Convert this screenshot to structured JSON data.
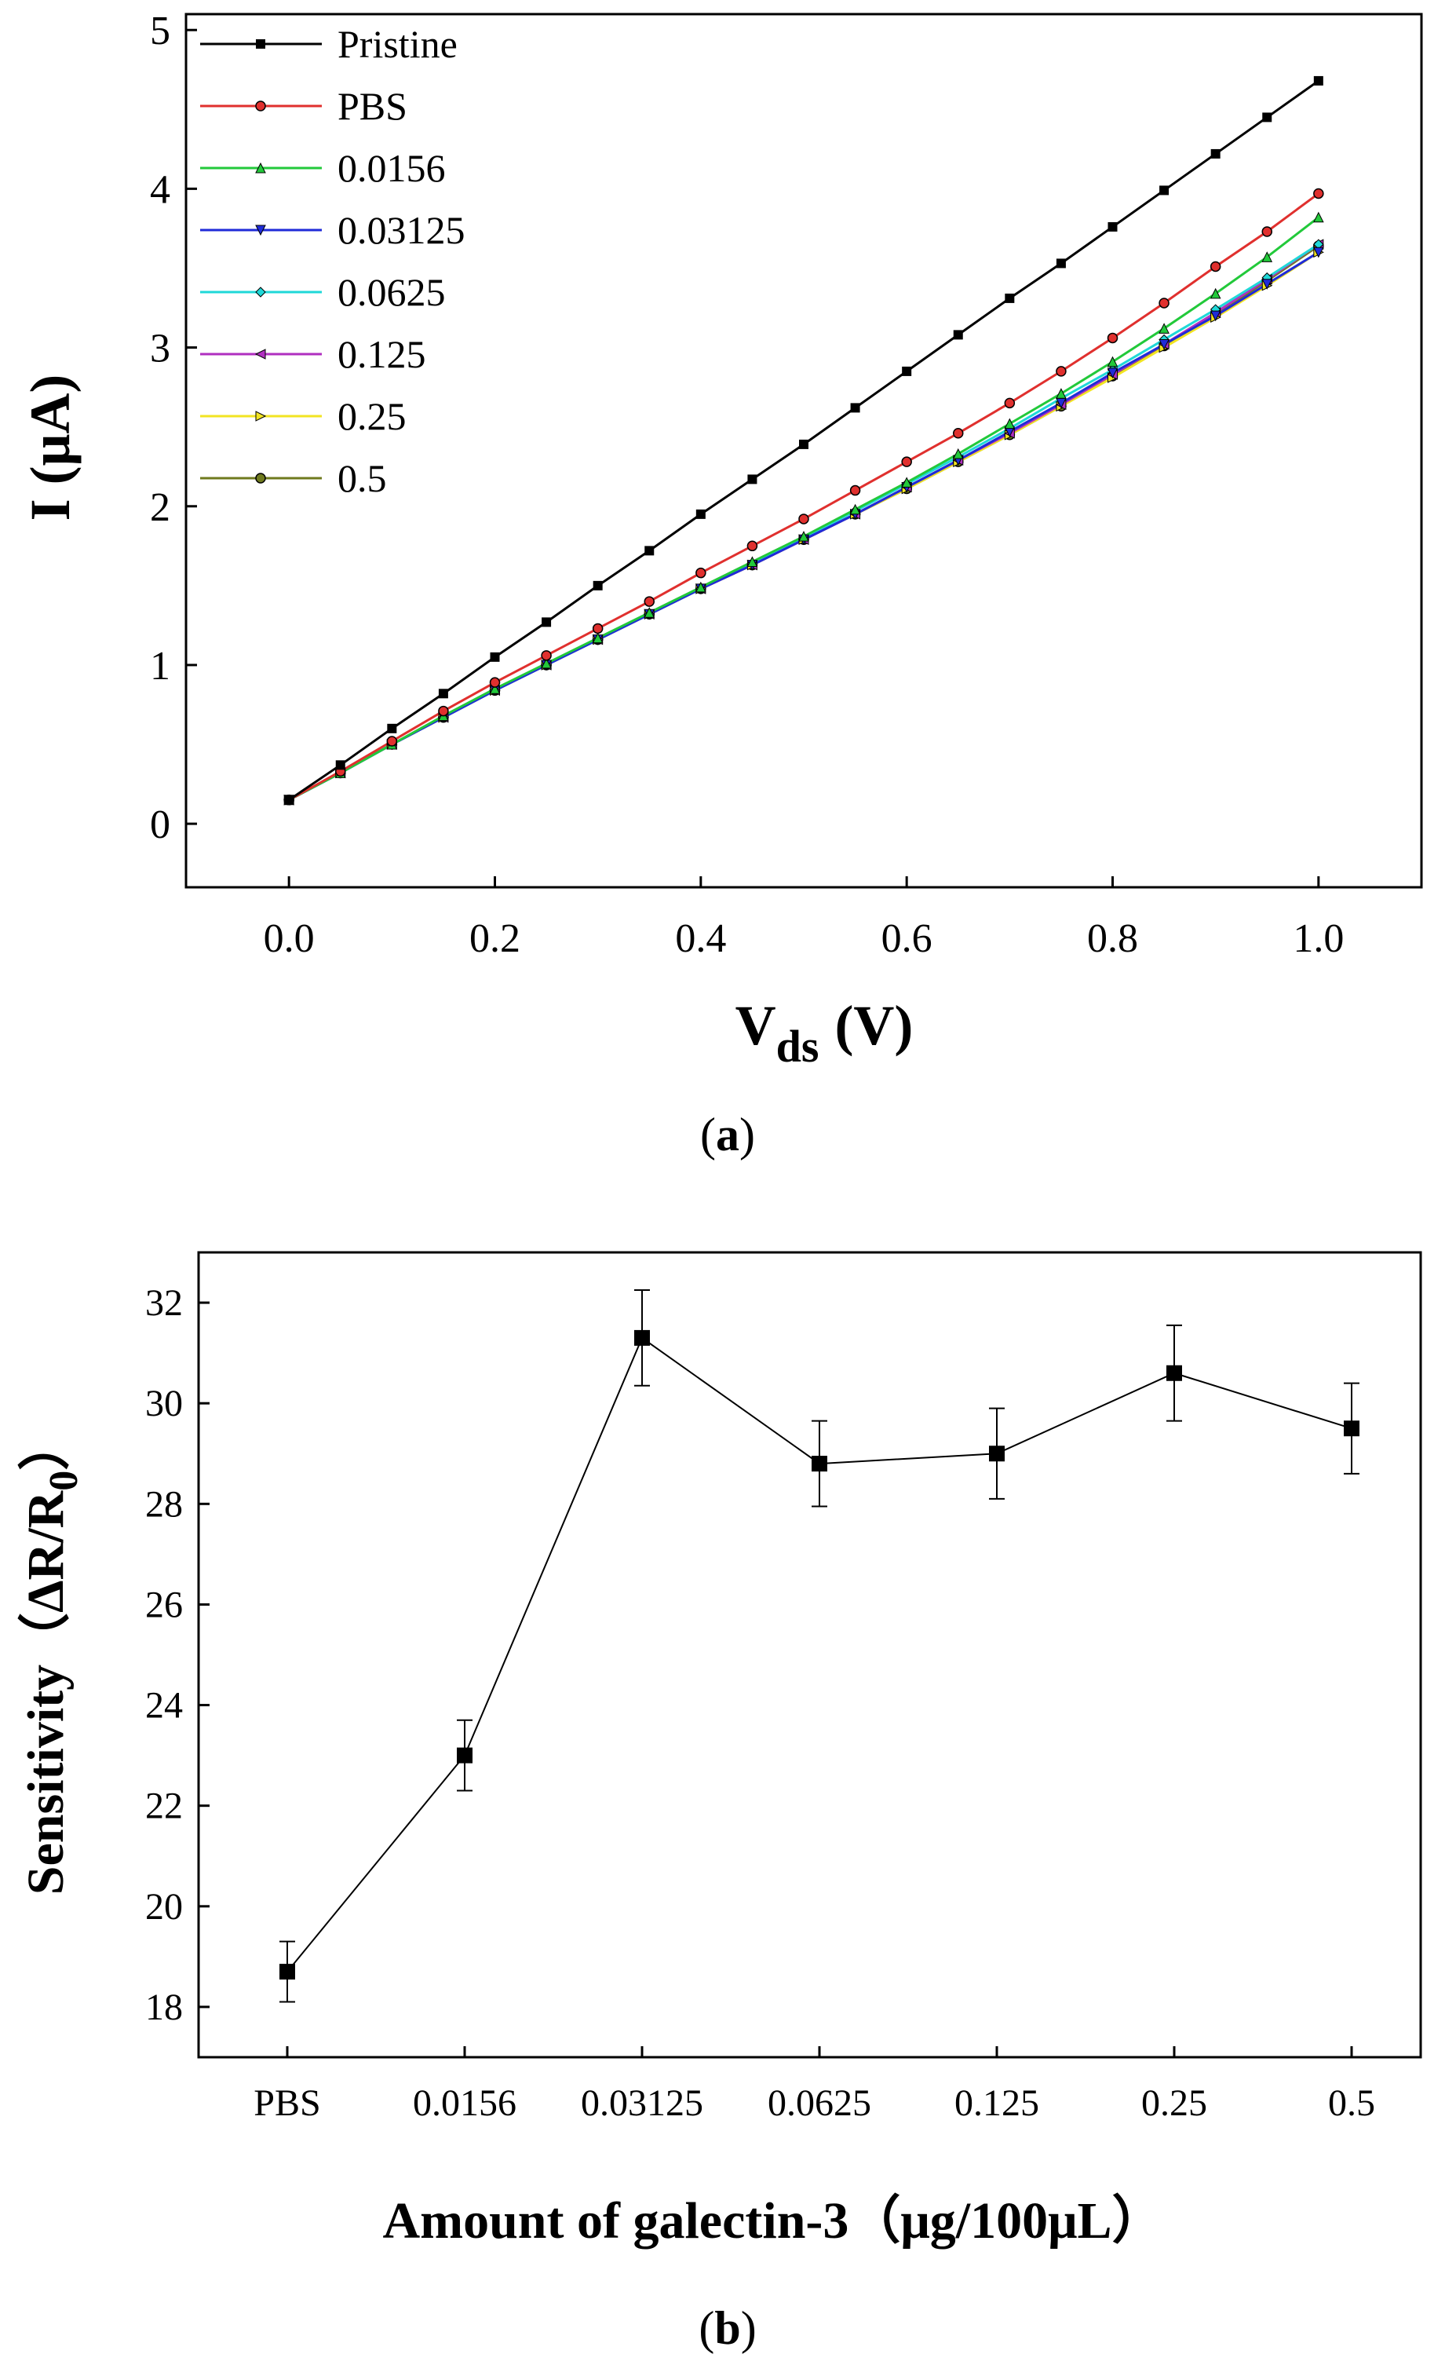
{
  "chart_data": [
    {
      "type": "line",
      "panel_label": "a",
      "title": "",
      "xlabel_main": "V",
      "xlabel_sub": "ds",
      "xlabel_unit": "(V)",
      "ylabel": "I (μA)",
      "xlim": [
        -0.1,
        1.1
      ],
      "ylim": [
        -0.4,
        5.1
      ],
      "xticks": [
        "0.0",
        "0.2",
        "0.4",
        "0.6",
        "0.8",
        "1.0"
      ],
      "yticks": [
        "0",
        "1",
        "2",
        "3",
        "4",
        "5"
      ],
      "legend_position": "top-left",
      "x": [
        0.0,
        0.05,
        0.1,
        0.15,
        0.2,
        0.25,
        0.3,
        0.35,
        0.4,
        0.45,
        0.5,
        0.55,
        0.6,
        0.65,
        0.7,
        0.75,
        0.8,
        0.85,
        0.9,
        0.95,
        1.0
      ],
      "series": [
        {
          "name": "Pristine",
          "color": "#000000",
          "marker": "square",
          "values": [
            0.15,
            0.37,
            0.6,
            0.82,
            1.05,
            1.27,
            1.5,
            1.72,
            1.95,
            2.17,
            2.39,
            2.62,
            2.85,
            3.08,
            3.31,
            3.53,
            3.76,
            3.99,
            4.22,
            4.45,
            4.68
          ]
        },
        {
          "name": "PBS",
          "color": "#e0302e",
          "marker": "circle",
          "values": [
            0.15,
            0.33,
            0.52,
            0.71,
            0.89,
            1.06,
            1.23,
            1.4,
            1.58,
            1.75,
            1.92,
            2.1,
            2.28,
            2.46,
            2.65,
            2.85,
            3.06,
            3.28,
            3.51,
            3.73,
            3.97
          ]
        },
        {
          "name": "0.0156",
          "color": "#22c93a",
          "marker": "triangle-up",
          "values": [
            0.15,
            0.32,
            0.5,
            0.68,
            0.85,
            1.01,
            1.17,
            1.33,
            1.49,
            1.65,
            1.81,
            1.98,
            2.15,
            2.33,
            2.52,
            2.71,
            2.91,
            3.12,
            3.34,
            3.57,
            3.82
          ]
        },
        {
          "name": "0.03125",
          "color": "#1f2bd8",
          "marker": "triangle-down",
          "values": [
            0.15,
            0.32,
            0.5,
            0.67,
            0.84,
            1.0,
            1.16,
            1.32,
            1.48,
            1.63,
            1.79,
            1.95,
            2.12,
            2.29,
            2.47,
            2.65,
            2.84,
            3.02,
            3.2,
            3.4,
            3.6
          ]
        },
        {
          "name": "0.0625",
          "color": "#1fd8d8",
          "marker": "diamond",
          "values": [
            0.15,
            0.32,
            0.5,
            0.67,
            0.84,
            1.0,
            1.16,
            1.32,
            1.48,
            1.64,
            1.8,
            1.97,
            2.14,
            2.31,
            2.49,
            2.68,
            2.86,
            3.05,
            3.24,
            3.44,
            3.65
          ]
        },
        {
          "name": "0.125",
          "color": "#b02fc0",
          "marker": "triangle-left",
          "values": [
            0.15,
            0.32,
            0.5,
            0.67,
            0.84,
            1.0,
            1.16,
            1.32,
            1.48,
            1.63,
            1.79,
            1.95,
            2.12,
            2.29,
            2.46,
            2.64,
            2.83,
            3.02,
            3.22,
            3.43,
            3.65
          ]
        },
        {
          "name": "0.25",
          "color": "#f2e422",
          "marker": "triangle-right",
          "values": [
            0.15,
            0.32,
            0.5,
            0.67,
            0.84,
            1.0,
            1.16,
            1.32,
            1.48,
            1.63,
            1.79,
            1.95,
            2.11,
            2.28,
            2.45,
            2.63,
            2.81,
            3.0,
            3.19,
            3.39,
            3.6
          ]
        },
        {
          "name": "0.5",
          "color": "#6f7a1e",
          "marker": "circle",
          "values": [
            0.15,
            0.32,
            0.5,
            0.67,
            0.84,
            1.0,
            1.16,
            1.32,
            1.48,
            1.63,
            1.79,
            1.95,
            2.11,
            2.28,
            2.45,
            2.63,
            2.82,
            3.01,
            3.21,
            3.42,
            3.64
          ]
        }
      ]
    },
    {
      "type": "line",
      "panel_label": "b",
      "title": "",
      "xlabel": "Amount of galectin-3（μg/100μL）",
      "ylabel_main": "Sensitivity（ΔR/R",
      "ylabel_sub": "0",
      "ylabel_close": "）",
      "categories": [
        "PBS",
        "0.0156",
        "0.03125",
        "0.0625",
        "0.125",
        "0.25",
        "0.5"
      ],
      "ylim": [
        17,
        33
      ],
      "yticks": [
        "18",
        "20",
        "22",
        "24",
        "26",
        "28",
        "30",
        "32"
      ],
      "series": [
        {
          "name": "Sensitivity",
          "color": "#000000",
          "marker": "square",
          "values": [
            18.7,
            23.0,
            31.3,
            28.8,
            29.0,
            30.6,
            29.5
          ],
          "errors": [
            0.6,
            0.7,
            0.95,
            0.85,
            0.9,
            0.95,
            0.9
          ]
        }
      ]
    }
  ]
}
